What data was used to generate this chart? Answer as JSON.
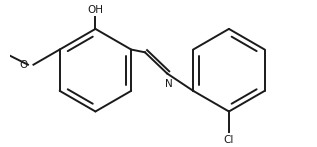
{
  "bg_color": "#ffffff",
  "bond_color": "#1a1a1a",
  "text_color": "#1a1a1a",
  "lw": 1.4,
  "r1x": 0.27,
  "r1y": 0.5,
  "r2x": 0.73,
  "r2y": 0.5,
  "r": 0.2,
  "oh_label": "OH",
  "o_label": "O",
  "n_label": "N",
  "cl_label": "Cl"
}
